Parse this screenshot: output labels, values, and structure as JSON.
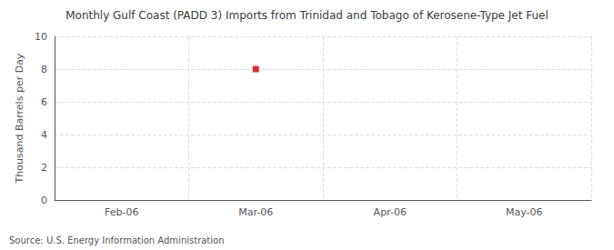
{
  "chart_data": {
    "type": "scatter",
    "title": "Monthly Gulf Coast (PADD 3) Imports from Trinidad and Tobago of Kerosene-Type Jet Fuel",
    "ylabel": "Thousand Barrels per Day",
    "annotations": [
      "Source: U.S. Energy Information Administration"
    ],
    "categories": [
      "Feb-06",
      "Mar-06",
      "Apr-06",
      "May-06"
    ],
    "values": [
      null,
      8,
      null,
      null
    ],
    "color": "#cc0000",
    "marker": "square",
    "ylim": [
      0,
      10
    ],
    "yticks": [
      0,
      2,
      4,
      6,
      8,
      10
    ],
    "grid": true
  }
}
